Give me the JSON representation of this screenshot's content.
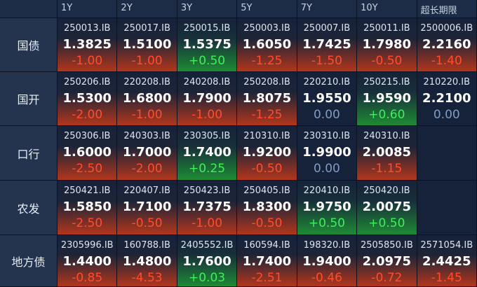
{
  "header": {
    "columns": [
      "1Y",
      "2Y",
      "3Y",
      "5Y",
      "7Y",
      "10Y",
      "超长期限"
    ]
  },
  "rows": [
    {
      "label": "国债",
      "cells": [
        {
          "code": "250013.IB",
          "yield": "1.3825",
          "change": "-1.00"
        },
        {
          "code": "250017.IB",
          "yield": "1.5100",
          "change": "-1.00"
        },
        {
          "code": "250015.IB",
          "yield": "1.5375",
          "change": "+0.50"
        },
        {
          "code": "250003.IB",
          "yield": "1.6050",
          "change": "-1.25"
        },
        {
          "code": "250007.IB",
          "yield": "1.7425",
          "change": "-1.50"
        },
        {
          "code": "250011.IB",
          "yield": "1.7980",
          "change": "-0.50"
        },
        {
          "code": "2500006.IB",
          "yield": "2.2160",
          "change": "-1.40"
        }
      ]
    },
    {
      "label": "国开",
      "cells": [
        {
          "code": "250206.IB",
          "yield": "1.5300",
          "change": "-2.00"
        },
        {
          "code": "220208.IB",
          "yield": "1.6800",
          "change": "-1.00"
        },
        {
          "code": "240208.IB",
          "yield": "1.7900",
          "change": "-1.00"
        },
        {
          "code": "250208.IB",
          "yield": "1.8075",
          "change": "-1.25"
        },
        {
          "code": "220210.IB",
          "yield": "1.9550",
          "change": "0.00"
        },
        {
          "code": "250215.IB",
          "yield": "1.9590",
          "change": "+0.60"
        },
        {
          "code": "210220.IB",
          "yield": "2.2100",
          "change": "0.00"
        }
      ]
    },
    {
      "label": "口行",
      "cells": [
        {
          "code": "250306.IB",
          "yield": "1.6000",
          "change": "-2.50"
        },
        {
          "code": "240303.IB",
          "yield": "1.7000",
          "change": "-2.00"
        },
        {
          "code": "230305.IB",
          "yield": "1.7400",
          "change": "+0.25"
        },
        {
          "code": "210310.IB",
          "yield": "1.9200",
          "change": "-0.50"
        },
        {
          "code": "230310.IB",
          "yield": "1.9900",
          "change": "0.00"
        },
        {
          "code": "240310.IB",
          "yield": "2.0085",
          "change": "-1.15"
        }
      ]
    },
    {
      "label": "农发",
      "cells": [
        {
          "code": "250421.IB",
          "yield": "1.5850",
          "change": "-2.50"
        },
        {
          "code": "220407.IB",
          "yield": "1.7100",
          "change": "-0.50"
        },
        {
          "code": "250423.IB",
          "yield": "1.7375",
          "change": "-1.00"
        },
        {
          "code": "250405.IB",
          "yield": "1.8300",
          "change": "-0.50"
        },
        {
          "code": "220410.IB",
          "yield": "1.9750",
          "change": "+0.50"
        },
        {
          "code": "250420.IB",
          "yield": "2.0075",
          "change": "+0.50"
        }
      ]
    },
    {
      "label": "地方债",
      "cells": [
        {
          "code": "2305996.IB",
          "yield": "1.4400",
          "change": "-0.85"
        },
        {
          "code": "160788.IB",
          "yield": "1.4800",
          "change": "-4.53"
        },
        {
          "code": "2405552.IB",
          "yield": "1.7600",
          "change": "+0.03"
        },
        {
          "code": "160594.IB",
          "yield": "1.7400",
          "change": "-2.51"
        },
        {
          "code": "198320.IB",
          "yield": "1.9400",
          "change": "-0.46"
        },
        {
          "code": "2505850.IB",
          "yield": "2.0975",
          "change": "-0.72"
        },
        {
          "code": "2571054.IB",
          "yield": "2.4425",
          "change": "-1.45"
        }
      ]
    }
  ]
}
